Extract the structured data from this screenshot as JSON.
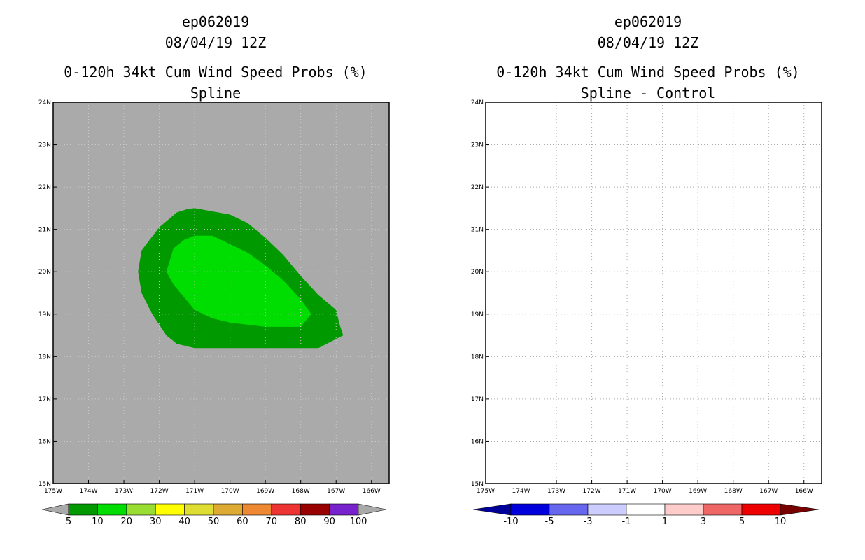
{
  "chart_data": [
    {
      "type": "filled-contour-map",
      "title_lines": [
        "ep062019",
        "08/04/19 12Z",
        "0-120h 34kt Cum Wind Speed Probs (%)",
        "Spline"
      ],
      "x_ticks": [
        "175W",
        "174W",
        "173W",
        "172W",
        "171W",
        "170W",
        "169W",
        "168W",
        "167W",
        "166W"
      ],
      "y_ticks": [
        "15N",
        "16N",
        "17N",
        "18N",
        "19N",
        "20N",
        "21N",
        "22N",
        "23N",
        "24N"
      ],
      "xlim": [
        -175,
        -165.5
      ],
      "ylim": [
        15,
        24
      ],
      "background_color": "#aaaaaa",
      "contours": [
        {
          "min": 5,
          "max": 10,
          "color": "#009900",
          "lon": [
            -171,
            -170,
            -169.5,
            -169,
            -168.5,
            -168,
            -167.5,
            -167,
            -166.9,
            -166.8,
            -167.5,
            -168.5,
            -170,
            -171,
            -171.5,
            -171.8,
            -172.2,
            -172.5,
            -172.6,
            -172.5,
            -172,
            -171.5,
            -171.2,
            -171
          ],
          "lat": [
            21.5,
            21.35,
            21.15,
            20.8,
            20.4,
            19.9,
            19.45,
            19.1,
            18.75,
            18.5,
            18.2,
            18.2,
            18.2,
            18.2,
            18.3,
            18.5,
            19.0,
            19.5,
            20.0,
            20.5,
            21.05,
            21.4,
            21.48,
            21.5
          ]
        },
        {
          "min": 10,
          "max": 20,
          "color": "#00dd00",
          "lon": [
            -171,
            -170.5,
            -170,
            -169.5,
            -169,
            -168.5,
            -168,
            -167.7,
            -168,
            -168.5,
            -169,
            -170,
            -170.5,
            -171,
            -171.3,
            -171.6,
            -171.8,
            -171.6,
            -171.3,
            -171
          ],
          "lat": [
            20.85,
            20.85,
            20.65,
            20.45,
            20.15,
            19.8,
            19.35,
            19.0,
            18.7,
            18.7,
            18.7,
            18.8,
            18.9,
            19.1,
            19.4,
            19.7,
            20.0,
            20.55,
            20.75,
            20.85
          ]
        }
      ],
      "colorbar": {
        "labels": [
          "5",
          "10",
          "20",
          "30",
          "40",
          "50",
          "60",
          "70",
          "80",
          "90",
          "100"
        ],
        "colors": [
          "#009900",
          "#00dd00",
          "#99dd33",
          "#ffff00",
          "#dddd33",
          "#ddaa33",
          "#ee8833",
          "#ee3333",
          "#990000",
          "#7722cc"
        ],
        "end_colors": [
          "#aaaaaa",
          "#aaaaaa"
        ]
      }
    },
    {
      "type": "filled-contour-map",
      "title_lines": [
        "ep062019",
        "08/04/19 12Z",
        "0-120h 34kt Cum Wind Speed Probs (%)",
        "Spline - Control"
      ],
      "x_ticks": [
        "175W",
        "174W",
        "173W",
        "172W",
        "171W",
        "170W",
        "169W",
        "168W",
        "167W",
        "166W"
      ],
      "y_ticks": [
        "15N",
        "16N",
        "17N",
        "18N",
        "19N",
        "20N",
        "21N",
        "22N",
        "23N",
        "24N"
      ],
      "xlim": [
        -175,
        -165.5
      ],
      "ylim": [
        15,
        24
      ],
      "background_color": "#ffffff",
      "grid": true,
      "contours": [],
      "colorbar": {
        "labels": [
          "-10",
          "-5",
          "-3",
          "-1",
          "1",
          "3",
          "5",
          "10"
        ],
        "colors": [
          "#0000dd",
          "#6666ee",
          "#ccccff",
          "#ffffff",
          "#ffcccc",
          "#ee6666",
          "#ee0000"
        ],
        "end_colors": [
          "#000099",
          "#770000"
        ]
      }
    }
  ]
}
